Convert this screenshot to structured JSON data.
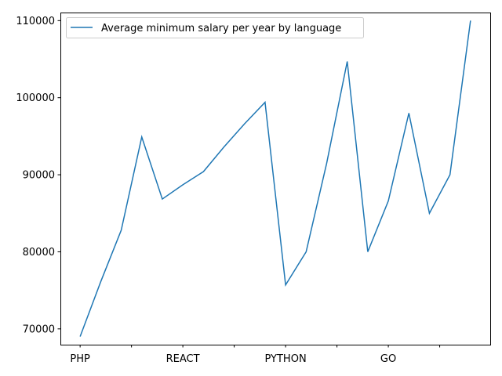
{
  "chart_data": {
    "type": "line",
    "legend": {
      "position": "upper-left"
    },
    "grid": false,
    "x": [
      0,
      1,
      2,
      3,
      4,
      5,
      6,
      7,
      8,
      9,
      10,
      11,
      12,
      13,
      14,
      15,
      16,
      17,
      18,
      19
    ],
    "x_tick_values": [
      0,
      2.5,
      5,
      7.5,
      10,
      12.5,
      15,
      17.5
    ],
    "x_tick_labels": [
      "PHP",
      "",
      "REACT",
      "",
      "PYTHON",
      "",
      "GO",
      ""
    ],
    "xlim": [
      -0.96,
      19.96
    ],
    "ylim": [
      67950,
      111050
    ],
    "y_ticks": [
      70000,
      80000,
      90000,
      100000,
      110000
    ],
    "y_tick_labels": [
      "70000",
      "80000",
      "90000",
      "100000",
      "110000"
    ],
    "series": [
      {
        "name": "Average minimum salary per year by language",
        "color": "#1f77b4",
        "values": [
          69000,
          76100,
          82800,
          94900,
          86850,
          88700,
          90400,
          93600,
          96600,
          99400,
          75700,
          80000,
          91500,
          104700,
          80000,
          86600,
          98000,
          85000,
          90000,
          110000
        ]
      }
    ]
  }
}
